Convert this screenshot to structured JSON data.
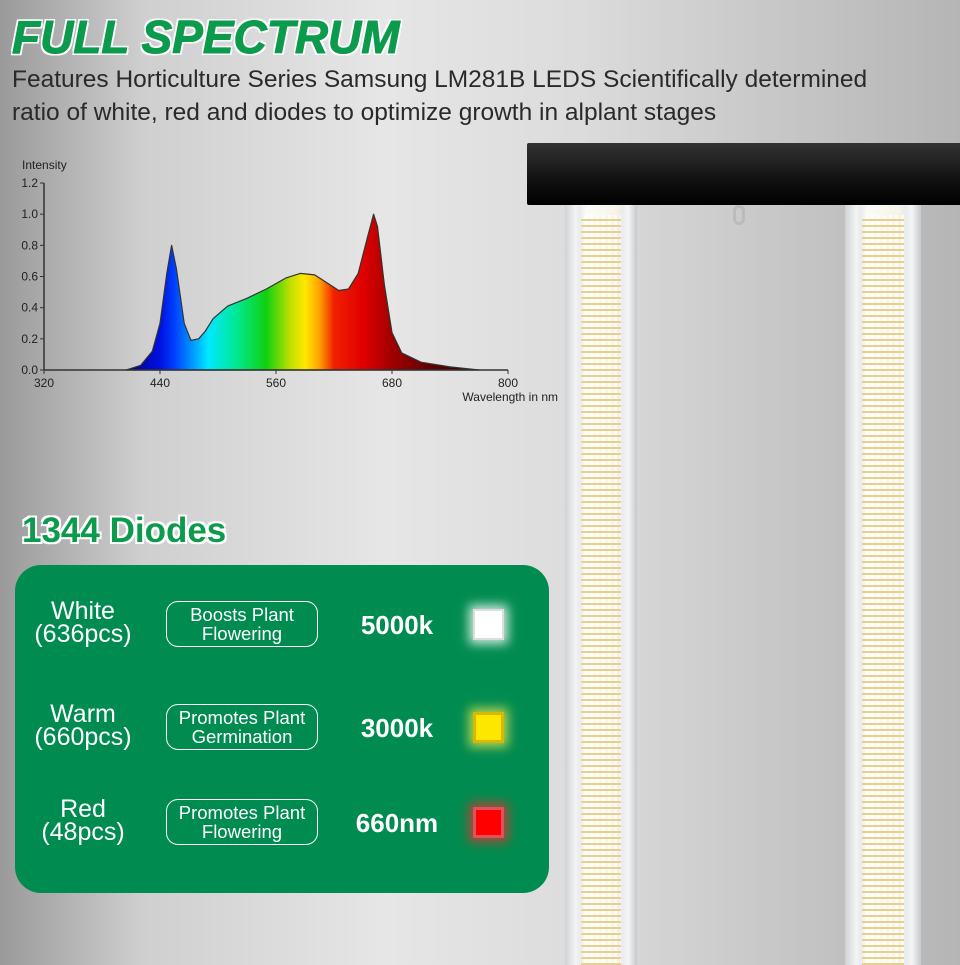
{
  "header": {
    "title": "FULL SPECTRUM",
    "subtitle_line1": "Features Horticulture Series Samsung LM281B LEDS Scientifically determined",
    "subtitle_line2": "ratio of white, red and diodes to optimize growth in alplant stages"
  },
  "chart_data": {
    "type": "area",
    "title": "",
    "xlabel": "Wavelength in nm",
    "ylabel": "Intensity",
    "xlim": [
      320,
      800
    ],
    "ylim": [
      0,
      1.2
    ],
    "x_ticks": [
      "320",
      "440",
      "560",
      "680",
      "800"
    ],
    "y_ticks": [
      "0.0",
      "0.2",
      "0.4",
      "0.6",
      "0.8",
      "1.0",
      "1.2"
    ],
    "grid": false,
    "fill": "visible-spectrum gradient",
    "x": [
      405,
      420,
      432,
      440,
      447,
      452,
      457,
      465,
      472,
      480,
      487,
      495,
      510,
      530,
      550,
      570,
      585,
      600,
      615,
      625,
      635,
      645,
      655,
      661,
      665,
      672,
      680,
      690,
      710,
      740,
      770
    ],
    "values": [
      0,
      0.03,
      0.12,
      0.3,
      0.62,
      0.8,
      0.65,
      0.3,
      0.19,
      0.2,
      0.25,
      0.33,
      0.41,
      0.46,
      0.52,
      0.59,
      0.62,
      0.61,
      0.55,
      0.51,
      0.52,
      0.62,
      0.86,
      1.0,
      0.92,
      0.55,
      0.24,
      0.11,
      0.05,
      0.02,
      0.0
    ]
  },
  "diodes": {
    "title": "1344 Diodes",
    "rows": [
      {
        "name": "White",
        "count": "(636pcs)",
        "desc1": "Boosts Plant",
        "desc2": "Flowering",
        "value": "5000k",
        "color": "#ffffff"
      },
      {
        "name": "Warm",
        "count": "(660pcs)",
        "desc1": "Promotes Plant",
        "desc2": "Germination",
        "value": "3000k",
        "color": "#ffe600"
      },
      {
        "name": "Red",
        "count": "(48pcs)",
        "desc1": "Promotes Plant",
        "desc2": "Flowering",
        "value": "660nm",
        "color": "#ff0000"
      }
    ]
  },
  "colors": {
    "brand_green": "#008c50",
    "title_green": "#0c9a4c"
  }
}
